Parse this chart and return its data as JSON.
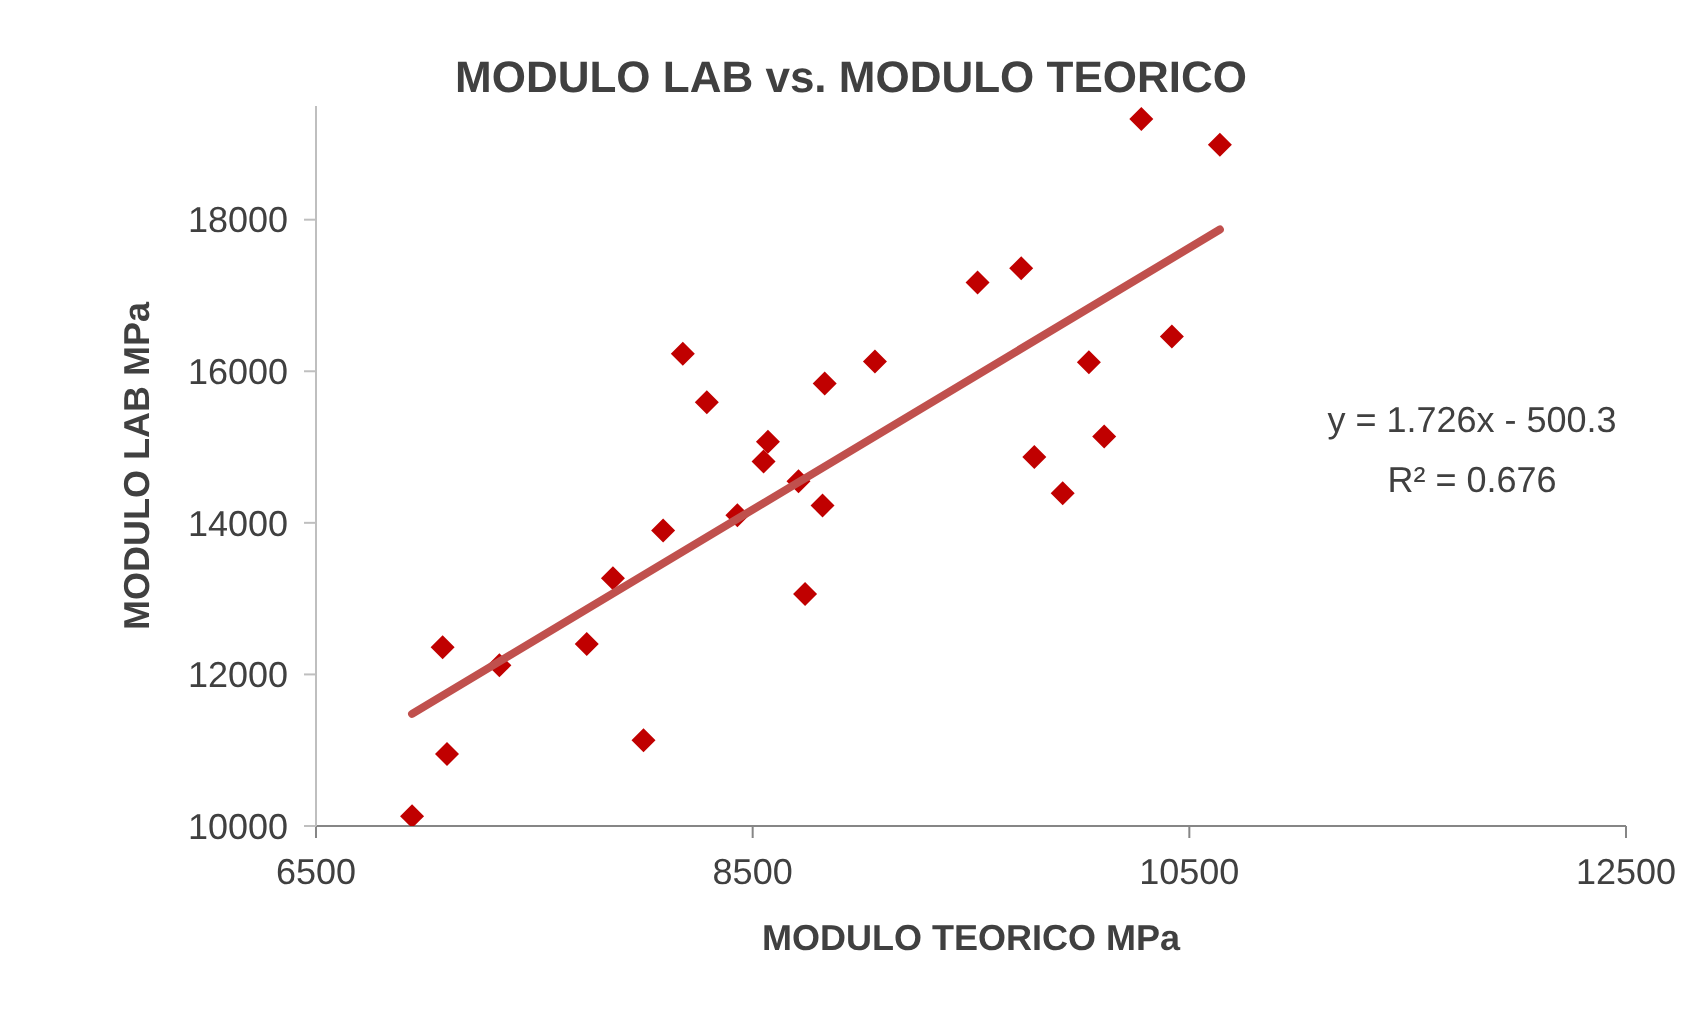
{
  "chart_data": {
    "type": "scatter",
    "title": "MODULO LAB vs. MODULO TEORICO",
    "xlabel": "MODULO TEORICO MPa",
    "ylabel": "MODULO LAB MPa",
    "annotations": [
      "y = 1.726x - 500.3",
      "R² = 0.676"
    ],
    "xlim": [
      6500,
      12500
    ],
    "xticks": [
      6500,
      8500,
      10500,
      12500
    ],
    "ylim": [
      10000,
      19500
    ],
    "yticks": [
      10000,
      12000,
      14000,
      16000,
      18000
    ],
    "grid": false,
    "legend": false,
    "marker": "diamond",
    "series": [
      {
        "color": "#c00000",
        "x": [
          6940,
          7080,
          7100,
          7340,
          7740,
          8000,
          7860,
          8090,
          8180,
          8290,
          8430,
          8570,
          8550,
          8710,
          8740,
          8820,
          8830,
          9060,
          9530,
          9730,
          9790,
          9920,
          10040,
          10110,
          10280,
          10420,
          10640
        ],
        "values": [
          10130,
          12360,
          10950,
          12120,
          12400,
          11130,
          13270,
          13900,
          16230,
          15590,
          14100,
          15070,
          14810,
          14550,
          13060,
          14230,
          15840,
          16130,
          17170,
          17360,
          14870,
          14390,
          16120,
          15140,
          19330,
          16460,
          18990
        ]
      },
      {
        "type": "line",
        "color": "#c0504d",
        "x": [
          6940,
          10640
        ],
        "values": [
          11480,
          17870
        ],
        "line_style": "solid",
        "marker": "none"
      }
    ]
  }
}
